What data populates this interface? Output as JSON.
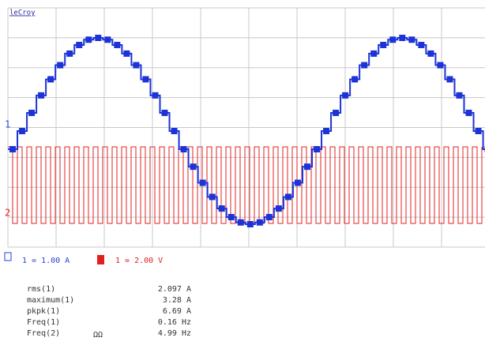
{
  "brand": "leCroy",
  "channel_markers": [
    "1",
    "2"
  ],
  "scales": [
    {
      "channel": "1",
      "text": "1 = 1.00 A"
    },
    {
      "channel": "2",
      "text": "1 = 2.00 V"
    }
  ],
  "measurements": {
    "rows": [
      [
        "rms(1)",
        "2.097 A"
      ],
      [
        "maximum(1)",
        "3.28 A"
      ],
      [
        "pkpk(1)",
        "6.69 A"
      ],
      [
        "Freq(1)",
        "0.16 Hz"
      ],
      [
        "Freq(2)",
        "4.99 Hz"
      ]
    ]
  },
  "warning": "ΩΩ"
}
